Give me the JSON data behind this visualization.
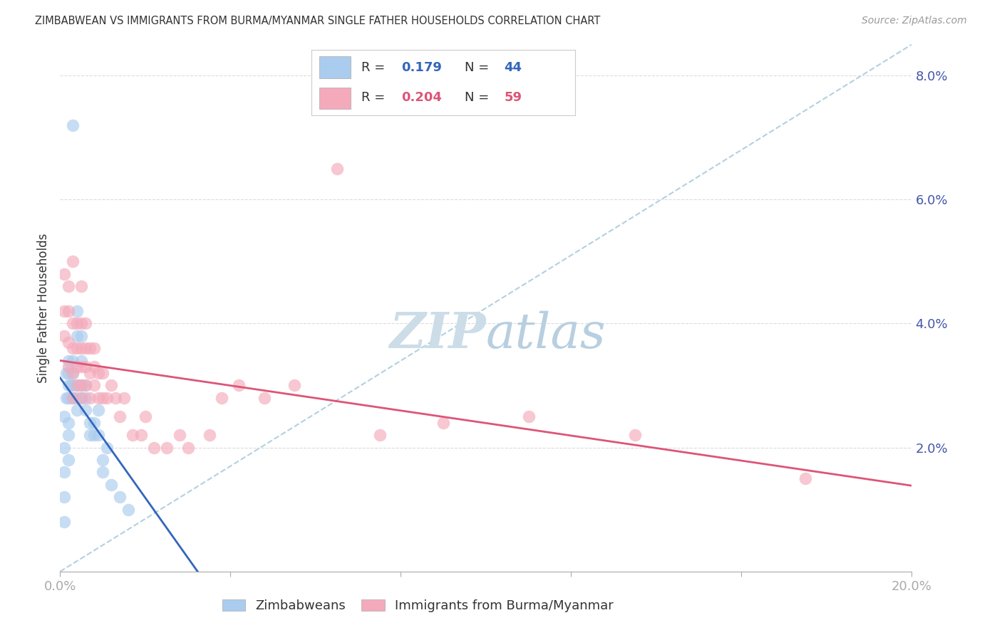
{
  "title": "ZIMBABWEAN VS IMMIGRANTS FROM BURMA/MYANMAR SINGLE FATHER HOUSEHOLDS CORRELATION CHART",
  "source": "Source: ZipAtlas.com",
  "ylabel": "Single Father Households",
  "xlim": [
    0.0,
    0.2
  ],
  "ylim": [
    0.0,
    0.085
  ],
  "x_ticks": [
    0.0,
    0.04,
    0.08,
    0.12,
    0.16,
    0.2
  ],
  "x_tick_labels": [
    "0.0%",
    "",
    "",
    "",
    "",
    "20.0%"
  ],
  "y_ticks": [
    0.0,
    0.02,
    0.04,
    0.06,
    0.08
  ],
  "y_tick_labels": [
    "",
    "2.0%",
    "4.0%",
    "6.0%",
    "8.0%"
  ],
  "r1": 0.179,
  "n1": 44,
  "r2": 0.204,
  "n2": 59,
  "blue_fill": "#aaccee",
  "pink_fill": "#f4aabb",
  "blue_line_color": "#3366bb",
  "pink_line_color": "#dd5577",
  "dashed_line_color": "#aaccdd",
  "grid_color": "#cccccc",
  "axis_label_color": "#4455aa",
  "watermark_color": "#ccdde8",
  "zim_x": [
    0.001,
    0.001,
    0.001,
    0.001,
    0.001,
    0.0015,
    0.0015,
    0.002,
    0.002,
    0.002,
    0.002,
    0.002,
    0.002,
    0.002,
    0.0025,
    0.003,
    0.003,
    0.003,
    0.003,
    0.003,
    0.004,
    0.004,
    0.004,
    0.004,
    0.004,
    0.005,
    0.005,
    0.005,
    0.005,
    0.006,
    0.006,
    0.006,
    0.007,
    0.007,
    0.008,
    0.008,
    0.009,
    0.009,
    0.01,
    0.01,
    0.011,
    0.012,
    0.014,
    0.016
  ],
  "zim_y": [
    0.008,
    0.012,
    0.016,
    0.02,
    0.025,
    0.028,
    0.032,
    0.024,
    0.028,
    0.03,
    0.032,
    0.034,
    0.018,
    0.022,
    0.03,
    0.028,
    0.03,
    0.032,
    0.034,
    0.072,
    0.026,
    0.028,
    0.03,
    0.038,
    0.042,
    0.028,
    0.03,
    0.034,
    0.038,
    0.026,
    0.028,
    0.03,
    0.022,
    0.024,
    0.022,
    0.024,
    0.022,
    0.026,
    0.016,
    0.018,
    0.02,
    0.014,
    0.012,
    0.01
  ],
  "burma_x": [
    0.001,
    0.001,
    0.001,
    0.002,
    0.002,
    0.002,
    0.002,
    0.003,
    0.003,
    0.003,
    0.003,
    0.003,
    0.004,
    0.004,
    0.004,
    0.004,
    0.005,
    0.005,
    0.005,
    0.005,
    0.005,
    0.005,
    0.006,
    0.006,
    0.006,
    0.006,
    0.007,
    0.007,
    0.007,
    0.008,
    0.008,
    0.008,
    0.009,
    0.009,
    0.01,
    0.01,
    0.011,
    0.012,
    0.013,
    0.014,
    0.015,
    0.017,
    0.019,
    0.02,
    0.022,
    0.025,
    0.028,
    0.03,
    0.035,
    0.038,
    0.042,
    0.048,
    0.055,
    0.065,
    0.075,
    0.09,
    0.11,
    0.135,
    0.175
  ],
  "burma_y": [
    0.038,
    0.042,
    0.048,
    0.033,
    0.037,
    0.042,
    0.046,
    0.028,
    0.032,
    0.036,
    0.04,
    0.05,
    0.03,
    0.033,
    0.036,
    0.04,
    0.028,
    0.03,
    0.033,
    0.036,
    0.04,
    0.046,
    0.03,
    0.033,
    0.036,
    0.04,
    0.028,
    0.032,
    0.036,
    0.03,
    0.033,
    0.036,
    0.028,
    0.032,
    0.028,
    0.032,
    0.028,
    0.03,
    0.028,
    0.025,
    0.028,
    0.022,
    0.022,
    0.025,
    0.02,
    0.02,
    0.022,
    0.02,
    0.022,
    0.028,
    0.03,
    0.028,
    0.03,
    0.065,
    0.022,
    0.024,
    0.025,
    0.022,
    0.015
  ],
  "blue_trend": [
    0.0,
    0.028,
    0.015,
    0.03
  ],
  "pink_trend": [
    0.0,
    0.024,
    0.2,
    0.04
  ]
}
